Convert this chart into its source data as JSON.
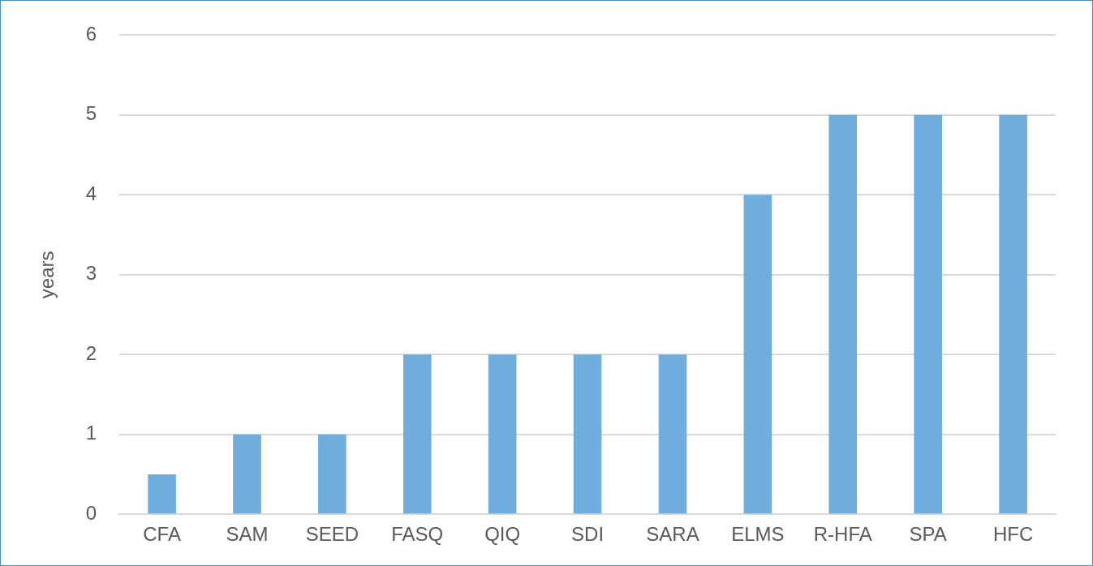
{
  "chart_data": {
    "type": "bar",
    "ylabel": "years",
    "categories": [
      "CFA",
      "SAM",
      "SEED",
      "FASQ",
      "QIQ",
      "SDI",
      "SARA",
      "ELMS",
      "R-HFA",
      "SPA",
      "HFC"
    ],
    "values": [
      0.5,
      1,
      1,
      2,
      2,
      2,
      2,
      4,
      5,
      5,
      5
    ],
    "color": "#6eaddd",
    "ylim": [
      0,
      6
    ],
    "yticks": [
      0,
      1,
      2,
      3,
      4,
      5,
      6
    ],
    "grid": "y",
    "legend": false
  }
}
